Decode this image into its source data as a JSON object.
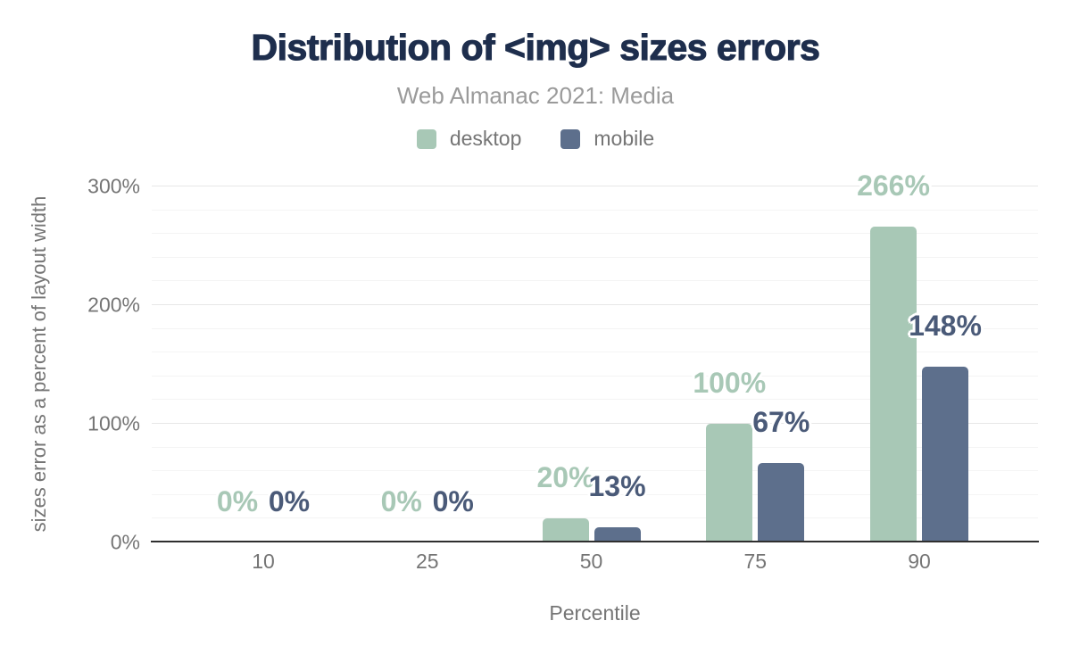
{
  "chart_data": {
    "type": "bar",
    "title": "Distribution of <img> sizes errors",
    "subtitle": "Web Almanac 2021: Media",
    "xlabel": "Percentile",
    "ylabel": "sizes error as a percent of layout width",
    "categories": [
      "10",
      "25",
      "50",
      "75",
      "90"
    ],
    "series": [
      {
        "name": "desktop",
        "color": "#a8c8b6",
        "label_color": "#a8c8b6",
        "values": [
          0,
          0,
          20,
          100,
          266
        ],
        "labels": [
          "0%",
          "0%",
          "20%",
          "100%",
          "266%"
        ]
      },
      {
        "name": "mobile",
        "color": "#5d6f8c",
        "label_color": "#4a5a78",
        "values": [
          0,
          0,
          13,
          67,
          148
        ],
        "labels": [
          "0%",
          "0%",
          "13%",
          "67%",
          "148%"
        ]
      }
    ],
    "ylim": [
      0,
      300
    ],
    "yticks": [
      {
        "value": 0,
        "label": "0%"
      },
      {
        "value": 100,
        "label": "100%"
      },
      {
        "value": 200,
        "label": "200%"
      },
      {
        "value": 300,
        "label": "300%"
      }
    ],
    "grid": {
      "major_step": 100,
      "minor_step": 20,
      "major_color": "#e7e7e7",
      "minor_color": "#f4f4f4"
    },
    "legend_position": "top-center",
    "colors": {
      "title": "#1e2e4d",
      "subtitle": "#9a9a9a",
      "axis_text": "#757575",
      "axis_line": "#2f2f2f",
      "background": "#ffffff"
    }
  }
}
